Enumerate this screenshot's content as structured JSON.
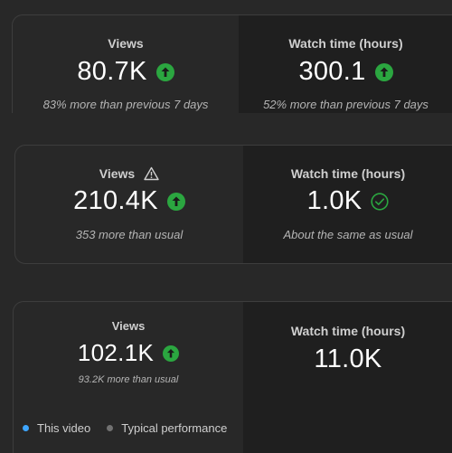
{
  "colors": {
    "positive": "#2ba640",
    "this_video": "#3ea6ff",
    "typical": "#717171"
  },
  "cards": [
    {
      "metrics": [
        {
          "label": "Views",
          "value": "80.7K",
          "trend_icon": "arrow-up-circle-icon",
          "note": "83% more than previous 7 days"
        },
        {
          "label": "Watch time (hours)",
          "value": "300.1",
          "trend_icon": "arrow-up-circle-icon",
          "note": "52% more than previous 7 days"
        }
      ]
    },
    {
      "metrics": [
        {
          "label": "Views",
          "label_icon": "warning-icon",
          "value": "210.4K",
          "trend_icon": "arrow-up-circle-icon",
          "note": "353 more than usual"
        },
        {
          "label": "Watch time (hours)",
          "value": "1.0K",
          "trend_icon": "check-circle-icon",
          "note": "About the same as usual"
        }
      ]
    },
    {
      "metrics": [
        {
          "label": "Views",
          "value": "102.1K",
          "trend_icon": "arrow-up-circle-icon",
          "note": "93.2K more than usual"
        },
        {
          "label": "Watch time (hours)",
          "value": "11.0K"
        }
      ],
      "legend": [
        {
          "label": "This video",
          "icon": "blue-dot"
        },
        {
          "label": "Typical performance",
          "icon": "gray-dot"
        }
      ]
    }
  ]
}
